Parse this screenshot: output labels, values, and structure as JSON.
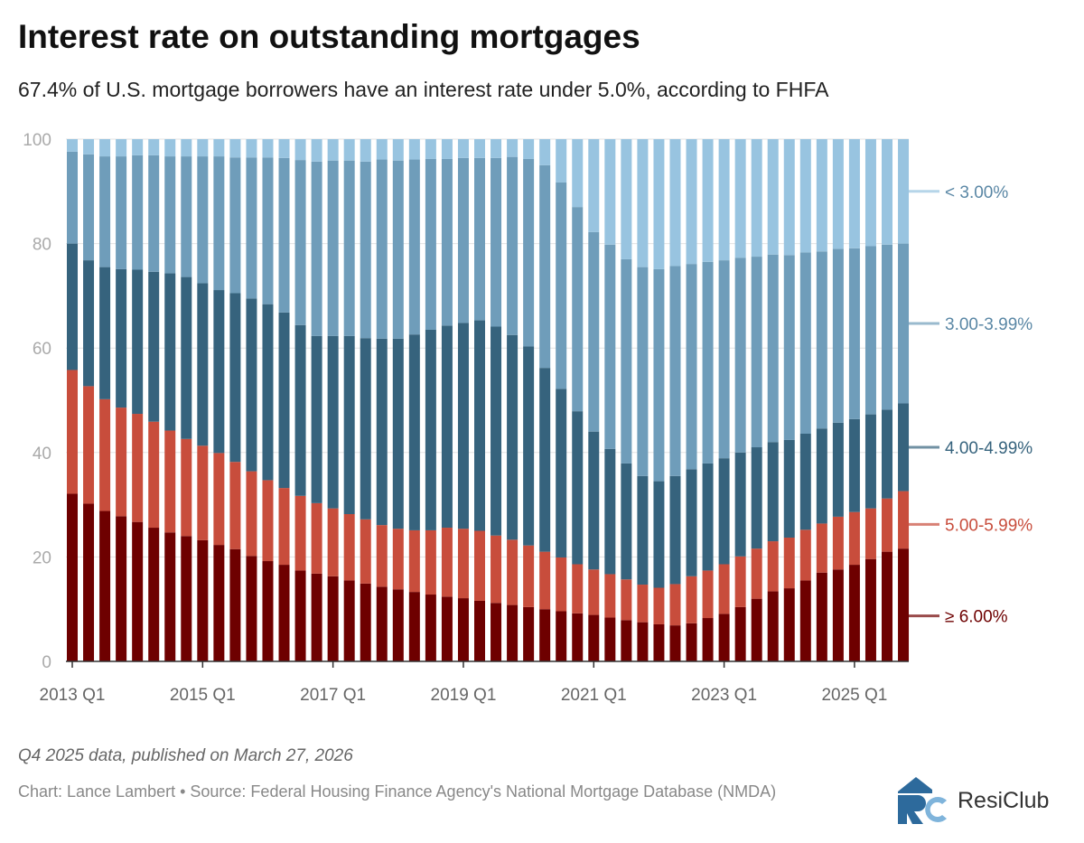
{
  "header": {
    "title": "Interest rate on outstanding mortgages",
    "subtitle": "67.4% of U.S. mortgage borrowers have an interest rate under 5.0%, according to FHFA"
  },
  "footer": {
    "note": "Q4 2025 data, published on March 27, 2026",
    "source": "Chart: Lance Lambert • Source: Federal Housing Finance Agency's National Mortgage Database (NMDA)",
    "logo_text": "ResiClub"
  },
  "chart_data": {
    "type": "bar",
    "stacked": true,
    "title": "Interest rate on outstanding mortgages",
    "ylim": [
      0,
      100
    ],
    "grid": true,
    "legend": "right",
    "yticks": [
      0,
      20,
      40,
      60,
      80,
      100
    ],
    "xticks": [
      "2013 Q1",
      "2015 Q1",
      "2017 Q1",
      "2019 Q1",
      "2021 Q1",
      "2023 Q1",
      "2025 Q1"
    ],
    "categories": [
      "2013 Q1",
      "2013 Q2",
      "2013 Q3",
      "2013 Q4",
      "2014 Q1",
      "2014 Q2",
      "2014 Q3",
      "2014 Q4",
      "2015 Q1",
      "2015 Q2",
      "2015 Q3",
      "2015 Q4",
      "2016 Q1",
      "2016 Q2",
      "2016 Q3",
      "2016 Q4",
      "2017 Q1",
      "2017 Q2",
      "2017 Q3",
      "2017 Q4",
      "2018 Q1",
      "2018 Q2",
      "2018 Q3",
      "2018 Q4",
      "2019 Q1",
      "2019 Q2",
      "2019 Q3",
      "2019 Q4",
      "2020 Q1",
      "2020 Q2",
      "2020 Q3",
      "2020 Q4",
      "2021 Q1",
      "2021 Q2",
      "2021 Q3",
      "2021 Q4",
      "2022 Q1",
      "2022 Q2",
      "2022 Q3",
      "2022 Q4",
      "2023 Q1",
      "2023 Q2",
      "2023 Q3",
      "2023 Q4",
      "2024 Q1",
      "2024 Q2",
      "2024 Q3",
      "2024 Q4",
      "2025 Q1",
      "2025 Q2",
      "2025 Q3",
      "2025 Q4"
    ],
    "series": [
      {
        "name": "≥ 6.00%",
        "color": "#6e0000",
        "values": [
          32.1,
          30.2,
          28.8,
          27.8,
          26.7,
          25.6,
          24.7,
          24.0,
          23.2,
          22.3,
          21.5,
          20.2,
          19.2,
          18.5,
          17.4,
          16.8,
          16.3,
          15.5,
          14.9,
          14.3,
          13.8,
          13.3,
          12.8,
          12.4,
          12.1,
          11.6,
          11.2,
          10.8,
          10.4,
          10.0,
          9.6,
          9.2,
          8.9,
          8.4,
          7.9,
          7.5,
          7.1,
          6.9,
          7.3,
          8.3,
          9.1,
          10.4,
          12.0,
          13.4,
          14.0,
          15.5,
          17.0,
          17.6,
          18.5,
          19.6,
          21.0,
          21.6
        ]
      },
      {
        "name": "5.00-5.99%",
        "color": "#c84d3c",
        "values": [
          23.7,
          22.5,
          21.4,
          20.8,
          20.7,
          20.3,
          19.5,
          18.6,
          18.1,
          17.6,
          16.7,
          16.2,
          15.5,
          14.7,
          14.3,
          13.5,
          13.0,
          12.7,
          12.3,
          11.8,
          11.6,
          11.8,
          12.3,
          13.2,
          13.3,
          13.4,
          12.9,
          12.5,
          11.8,
          11.0,
          10.3,
          9.4,
          8.7,
          8.3,
          7.8,
          7.2,
          7.0,
          7.9,
          9.0,
          9.1,
          9.5,
          9.7,
          9.6,
          9.6,
          9.7,
          9.7,
          9.4,
          10.1,
          10.1,
          9.7,
          10.2,
          11.0
        ]
      },
      {
        "name": "4.00-4.99%",
        "color": "#36637d",
        "values": [
          24.2,
          24.1,
          25.3,
          26.5,
          27.6,
          28.7,
          30.1,
          31.0,
          31.1,
          31.2,
          32.3,
          33.1,
          33.7,
          33.6,
          32.7,
          32.0,
          33.0,
          34.1,
          34.7,
          35.7,
          36.4,
          37.5,
          38.4,
          38.7,
          39.4,
          40.3,
          40.0,
          39.2,
          38.1,
          35.2,
          32.3,
          29.3,
          26.4,
          24.0,
          22.2,
          20.8,
          20.4,
          20.7,
          20.5,
          20.5,
          20.3,
          19.9,
          19.4,
          19.0,
          18.7,
          18.4,
          18.2,
          18.0,
          17.8,
          18.0,
          17.0,
          16.8
        ]
      },
      {
        "name": "3.00-3.99%",
        "color": "#6f9dba",
        "values": [
          17.6,
          20.3,
          21.2,
          21.6,
          21.9,
          22.3,
          22.4,
          23.1,
          24.3,
          25.6,
          26.0,
          27.0,
          28.1,
          29.6,
          31.6,
          33.4,
          33.6,
          33.6,
          33.8,
          34.3,
          34.1,
          33.5,
          32.7,
          31.9,
          31.6,
          31.1,
          32.3,
          34.1,
          35.9,
          38.8,
          39.5,
          39.1,
          38.2,
          39.1,
          39.1,
          40.0,
          40.6,
          40.2,
          39.3,
          38.6,
          37.9,
          37.3,
          36.5,
          35.9,
          35.4,
          34.7,
          33.9,
          33.3,
          32.7,
          32.2,
          31.6,
          30.6
        ]
      },
      {
        "name": "< 3.00%",
        "color": "#98c4e0",
        "values": [
          2.4,
          2.9,
          3.3,
          3.3,
          3.1,
          3.1,
          3.3,
          3.3,
          3.3,
          3.3,
          3.5,
          3.5,
          3.5,
          3.6,
          4.0,
          4.3,
          4.1,
          4.1,
          4.3,
          3.9,
          4.1,
          3.9,
          3.8,
          3.8,
          3.6,
          3.6,
          3.6,
          3.4,
          3.8,
          5.0,
          8.3,
          13.0,
          17.8,
          20.2,
          23.0,
          24.5,
          24.9,
          24.3,
          23.9,
          23.5,
          23.2,
          22.7,
          22.5,
          22.1,
          22.2,
          21.7,
          21.5,
          21.0,
          20.9,
          20.5,
          20.2,
          20.0
        ]
      }
    ],
    "legend_label_colors": {
      "< 3.00%": "#5a87a5",
      "3.00-3.99%": "#5a87a5",
      "4.00-4.99%": "#36637d",
      "5.00-5.99%": "#c84d3c",
      "≥ 6.00%": "#6e0000"
    }
  }
}
